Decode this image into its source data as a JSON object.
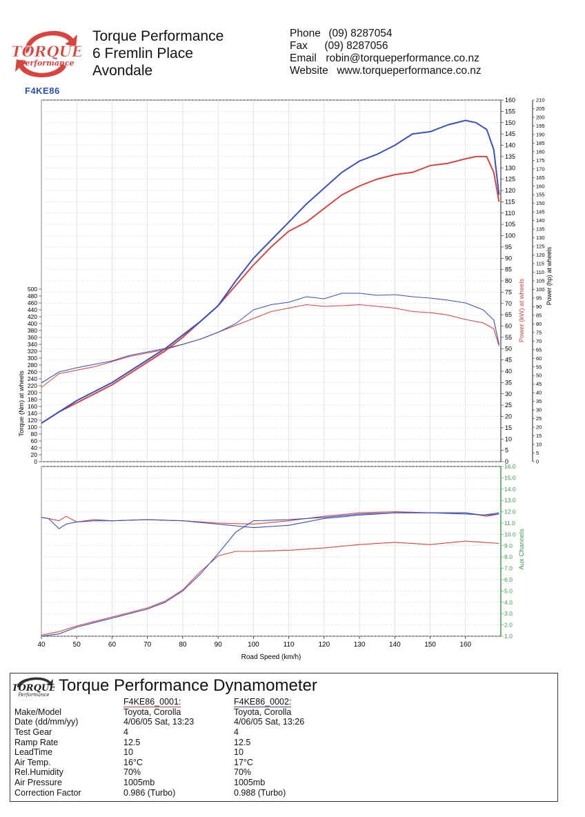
{
  "header": {
    "logo_text": "TORQUE",
    "logo_subtext": "Performance",
    "run_tag": "F4KE86",
    "company_lines": [
      "Torque Performance",
      "6 Fremlin Place",
      "Avondale"
    ],
    "contact": [
      {
        "label": "Phone",
        "value": "(09) 8287054"
      },
      {
        "label": "Fax",
        "value": "(09) 8287056"
      },
      {
        "label": "Email",
        "value": "robin@torqueperformance.co.nz"
      },
      {
        "label": "Website",
        "value": "www.torqueperformance.co.nz"
      }
    ]
  },
  "colors": {
    "run1": "#d9443f",
    "run2": "#3a4fc0",
    "aux": "#3a9a4a",
    "grid": "#c9d9cc"
  },
  "chart_data": [
    {
      "type": "line",
      "xlabel": "Road Speed (km/h)",
      "xlim": [
        40,
        170
      ],
      "x_ticks": [
        40,
        50,
        60,
        70,
        80,
        90,
        100,
        110,
        120,
        130,
        140,
        150,
        160
      ],
      "axes": {
        "torque": {
          "label": "Torque (Nm) at wheels",
          "range": [
            0,
            500
          ],
          "step": 20
        },
        "power_kw": {
          "label": "Power (kW) at wheels",
          "range": [
            0,
            160
          ],
          "step": 5
        },
        "power_hp": {
          "label": "Power (hp) at wheels",
          "range": [
            0,
            210
          ],
          "step": 5
        }
      },
      "series": [
        {
          "name": "F4KE86_0001",
          "quantity": "power_kw",
          "x": [
            40,
            45,
            50,
            55,
            60,
            65,
            70,
            75,
            80,
            85,
            90,
            95,
            100,
            105,
            110,
            115,
            120,
            125,
            130,
            135,
            140,
            145,
            150,
            155,
            160,
            163,
            166,
            168,
            169.5
          ],
          "values": [
            17,
            22,
            26,
            30,
            34,
            39,
            44,
            49,
            55,
            62,
            69,
            78,
            87,
            95,
            102,
            106,
            112,
            118,
            122,
            125,
            127,
            128,
            131,
            132,
            134,
            135,
            135,
            128,
            115
          ]
        },
        {
          "name": "F4KE86_0002",
          "quantity": "power_kw",
          "x": [
            40,
            45,
            50,
            55,
            60,
            65,
            70,
            75,
            80,
            85,
            90,
            95,
            100,
            105,
            110,
            115,
            120,
            125,
            130,
            135,
            140,
            145,
            150,
            155,
            160,
            163,
            166,
            168,
            169.5
          ],
          "values": [
            17,
            22,
            27,
            31,
            35,
            40,
            45,
            50,
            56,
            62,
            69,
            80,
            90,
            98,
            106,
            114,
            121,
            128,
            133,
            136,
            140,
            145,
            146,
            149,
            151,
            150,
            147,
            138,
            118
          ]
        },
        {
          "name": "F4KE86_0001",
          "quantity": "torque",
          "x": [
            40,
            45,
            50,
            55,
            60,
            65,
            70,
            75,
            80,
            85,
            90,
            95,
            100,
            105,
            110,
            115,
            120,
            125,
            130,
            135,
            140,
            145,
            150,
            155,
            160,
            165,
            168,
            169.5
          ],
          "values": [
            215,
            255,
            265,
            275,
            290,
            305,
            315,
            325,
            340,
            355,
            375,
            395,
            415,
            435,
            445,
            455,
            450,
            452,
            455,
            450,
            445,
            435,
            432,
            425,
            412,
            402,
            385,
            335
          ]
        },
        {
          "name": "F4KE86_0002",
          "quantity": "torque",
          "x": [
            40,
            45,
            50,
            55,
            60,
            65,
            70,
            75,
            80,
            85,
            90,
            95,
            100,
            105,
            110,
            115,
            120,
            125,
            130,
            135,
            140,
            145,
            150,
            155,
            160,
            165,
            168,
            169.5
          ],
          "values": [
            228,
            260,
            272,
            282,
            292,
            308,
            318,
            328,
            340,
            355,
            375,
            400,
            440,
            455,
            462,
            478,
            472,
            488,
            488,
            482,
            484,
            478,
            474,
            468,
            460,
            440,
            410,
            340
          ]
        }
      ]
    },
    {
      "type": "line",
      "ylabel": "Aux Channels",
      "xlim": [
        40,
        170
      ],
      "ylim": [
        1.0,
        16.0
      ],
      "y_ticks": [
        1.0,
        2.0,
        3.0,
        4.0,
        5.0,
        6.0,
        7.0,
        8.0,
        9.0,
        10.0,
        11.0,
        12.0,
        13.0,
        14.0,
        15.0,
        16.0
      ],
      "series": [
        {
          "name": "F4KE86_0001",
          "channel": "afr",
          "x": [
            40,
            42,
            45,
            47,
            50,
            55,
            60,
            70,
            80,
            90,
            100,
            110,
            120,
            130,
            140,
            150,
            160,
            166,
            169.5
          ],
          "values": [
            11.5,
            11.4,
            11.2,
            11.6,
            11.1,
            11.3,
            11.2,
            11.3,
            11.2,
            11.0,
            10.9,
            11.2,
            11.6,
            11.9,
            12.0,
            11.9,
            11.9,
            11.6,
            11.8
          ]
        },
        {
          "name": "F4KE86_0002",
          "channel": "afr",
          "x": [
            40,
            42,
            45,
            47,
            50,
            55,
            60,
            70,
            80,
            90,
            100,
            110,
            120,
            130,
            140,
            150,
            160,
            166,
            169.5
          ],
          "values": [
            11.5,
            11.4,
            10.5,
            10.9,
            11.1,
            11.2,
            11.2,
            11.3,
            11.2,
            10.9,
            10.6,
            10.8,
            11.4,
            11.7,
            11.9,
            11.9,
            11.8,
            11.7,
            11.8
          ]
        },
        {
          "name": "F4KE86_0001",
          "channel": "boost",
          "x": [
            40,
            45,
            50,
            55,
            60,
            65,
            70,
            75,
            80,
            85,
            90,
            95,
            100,
            110,
            120,
            130,
            140,
            150,
            160,
            165,
            169.5
          ],
          "values": [
            1.1,
            1.4,
            1.9,
            2.3,
            2.7,
            3.1,
            3.5,
            4.1,
            5.1,
            6.7,
            8.1,
            8.5,
            8.5,
            8.6,
            8.8,
            9.1,
            9.3,
            9.1,
            9.4,
            9.3,
            9.2
          ]
        },
        {
          "name": "F4KE86_0002",
          "channel": "boost",
          "x": [
            40,
            45,
            50,
            55,
            60,
            65,
            70,
            75,
            80,
            85,
            90,
            95,
            100,
            110,
            120,
            130,
            140,
            150,
            160,
            165,
            169.5
          ],
          "values": [
            1.0,
            1.2,
            1.8,
            2.2,
            2.6,
            3.0,
            3.4,
            4.0,
            5.0,
            6.5,
            8.3,
            10.2,
            11.2,
            11.3,
            11.5,
            11.8,
            11.9,
            11.9,
            11.9,
            11.7,
            11.9
          ]
        }
      ]
    }
  ],
  "report": {
    "title": "Torque Performance Dynamometer",
    "run1_label": "F4KE86_0001:",
    "run2_label": "F4KE86_0002:",
    "rows": [
      {
        "label": "Make/Model",
        "v1": "Toyota, Corolla",
        "v2": "Toyota, Corolla"
      },
      {
        "label": "Date (dd/mm/yy)",
        "v1": "4/06/05 Sat, 13:23",
        "v2": "4/06/05 Sat, 13:26"
      },
      {
        "label": "Test Gear",
        "v1": "4",
        "v2": "4"
      },
      {
        "label": "Ramp Rate",
        "v1": "12.5",
        "v2": "12.5"
      },
      {
        "label": "LeadTime",
        "v1": "10",
        "v2": "10"
      },
      {
        "label": "Air Temp.",
        "v1": "16°C",
        "v2": "17°C"
      },
      {
        "label": "Rel.Humidity",
        "v1": "70%",
        "v2": "70%"
      },
      {
        "label": "Air Pressure",
        "v1": "1005mb",
        "v2": "1005mb"
      },
      {
        "label": "Correction Factor",
        "v1": "0.986 (Turbo)",
        "v2": "0.988 (Turbo)"
      }
    ]
  }
}
